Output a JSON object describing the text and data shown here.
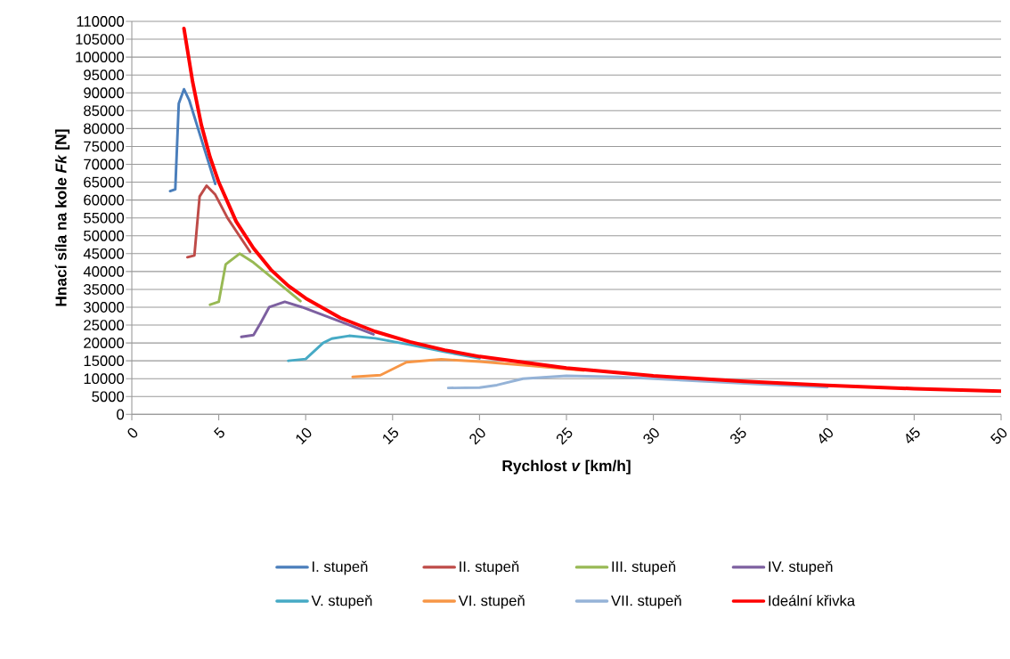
{
  "chart_data": {
    "type": "line",
    "xlabel": "Rychlost *v* [km/h]",
    "ylabel": "Hnací síla na kole *Fk* [N]",
    "xlim": [
      0,
      50
    ],
    "xticks": [
      0,
      5,
      10,
      15,
      20,
      25,
      30,
      35,
      40,
      45,
      50
    ],
    "ylim": [
      0,
      110000
    ],
    "yticks": [
      0,
      5000,
      10000,
      15000,
      20000,
      25000,
      30000,
      35000,
      40000,
      45000,
      50000,
      55000,
      60000,
      65000,
      70000,
      75000,
      80000,
      85000,
      90000,
      95000,
      100000,
      105000,
      110000
    ],
    "grid": "y",
    "legend": "bottom",
    "marker": "none",
    "line_style": "solid",
    "series": [
      {
        "name": "I. stupeň",
        "color": "#4a7ebb",
        "x": [
          2.2,
          2.5,
          2.7,
          3.0,
          3.3,
          4.0,
          4.8
        ],
        "values": [
          62500,
          63000,
          87000,
          91000,
          88000,
          77000,
          64500
        ]
      },
      {
        "name": "II. stupeň",
        "color": "#be4b48",
        "x": [
          3.2,
          3.6,
          3.9,
          4.3,
          4.8,
          5.5,
          6.8
        ],
        "values": [
          44000,
          44500,
          61000,
          64000,
          61500,
          55000,
          45500
        ]
      },
      {
        "name": "III. stupeň",
        "color": "#98b954",
        "x": [
          4.5,
          5.0,
          5.4,
          6.2,
          7.0,
          8.5,
          9.7
        ],
        "values": [
          30700,
          31500,
          42000,
          45000,
          42500,
          36500,
          31700
        ]
      },
      {
        "name": "IV. stupeň",
        "color": "#7d60a0",
        "x": [
          6.3,
          7.0,
          7.4,
          7.9,
          8.8,
          9.8,
          12,
          13.9
        ],
        "values": [
          21700,
          22200,
          25500,
          30000,
          31500,
          30000,
          26000,
          22400
        ]
      },
      {
        "name": "V. stupeň",
        "color": "#46aac5",
        "x": [
          9.0,
          10,
          11,
          11.5,
          12.5,
          14,
          16,
          18,
          20
        ],
        "values": [
          15000,
          15500,
          20000,
          21200,
          22000,
          21300,
          19500,
          17500,
          15700
        ]
      },
      {
        "name": "VI. stupeň",
        "color": "#f79646",
        "x": [
          12.7,
          14.3,
          15.8,
          17.8,
          20,
          23,
          26
        ],
        "values": [
          10500,
          11000,
          14600,
          15400,
          14800,
          13600,
          12300
        ]
      },
      {
        "name": "VII. stupeň",
        "color": "#95b3d7",
        "x": [
          18.2,
          20,
          21,
          22.5,
          25,
          28,
          32,
          36,
          40
        ],
        "values": [
          7400,
          7500,
          8200,
          10000,
          10800,
          10500,
          9500,
          8500,
          7600
        ]
      },
      {
        "name": "Ideální křivka",
        "color": "#ff0000",
        "x": [
          3,
          3.5,
          4,
          4.5,
          5,
          6,
          7,
          8,
          9,
          10,
          12,
          14,
          16,
          18,
          20,
          25,
          30,
          35,
          40,
          45,
          50
        ],
        "values": [
          108000,
          93000,
          81000,
          72000,
          65000,
          54000,
          46500,
          40500,
          36000,
          32500,
          27000,
          23200,
          20300,
          18000,
          16200,
          13000,
          10800,
          9300,
          8100,
          7200,
          6500
        ]
      }
    ]
  }
}
